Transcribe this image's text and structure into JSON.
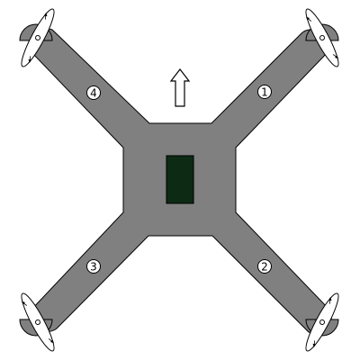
{
  "colors": {
    "frame": "#808080",
    "frame_stroke": "#000000",
    "controller": "#0d2a14",
    "propeller": "#ffffff",
    "background": "#ffffff"
  },
  "direction_indicator": {
    "icon": "up-arrow-icon"
  },
  "motors": [
    {
      "id": "motor-1",
      "label": "1"
    },
    {
      "id": "motor-2",
      "label": "2"
    },
    {
      "id": "motor-3",
      "label": "3"
    },
    {
      "id": "motor-4",
      "label": "4"
    }
  ]
}
